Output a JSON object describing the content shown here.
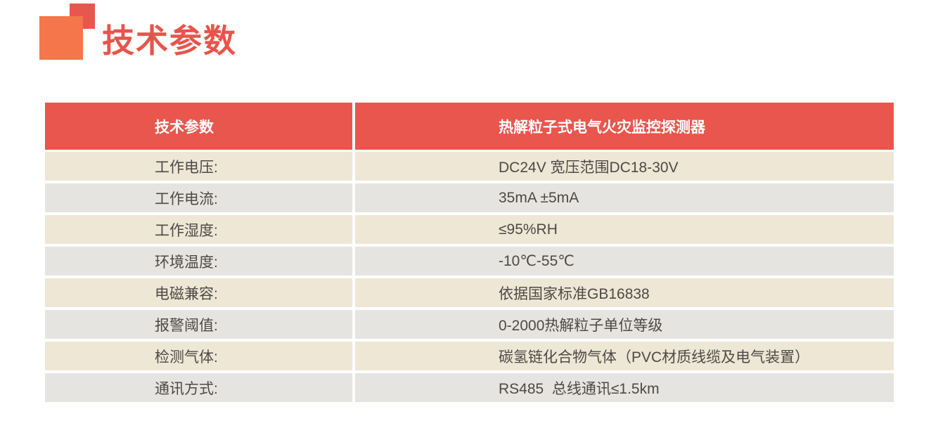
{
  "section_header": {
    "title": "技术参数",
    "accent_color": "#e8544b",
    "square_large_color": "#f4764a",
    "square_small_color": "#e9564e"
  },
  "table": {
    "header_bg": "#e9564e",
    "header_text_color": "#ffffff",
    "row_bg_beige": "#eee7d6",
    "row_bg_gray": "#e6e4e1",
    "body_text_color": "#4d4944",
    "columns": [
      {
        "label": "技术参数"
      },
      {
        "label": "热解粒子式电气火灾监控探测器"
      }
    ],
    "rows": [
      {
        "label": "工作电压:",
        "value": "DC24V 宽压范围DC18-30V"
      },
      {
        "label": "工作电流:",
        "value": "35mA ±5mA"
      },
      {
        "label": "工作湿度:",
        "value": "≤95%RH"
      },
      {
        "label": "环境温度:",
        "value": "-10℃-55℃"
      },
      {
        "label": "电磁兼容:",
        "value": "依据国家标准GB16838"
      },
      {
        "label": "报警阈值:",
        "value": "0-2000热解粒子单位等级"
      },
      {
        "label": "检测气体:",
        "value": "碳氢链化合物气体（PVC材质线缆及电气装置）"
      },
      {
        "label": "通讯方式:",
        "value": "RS485  总线通讯≤1.5km"
      }
    ]
  }
}
